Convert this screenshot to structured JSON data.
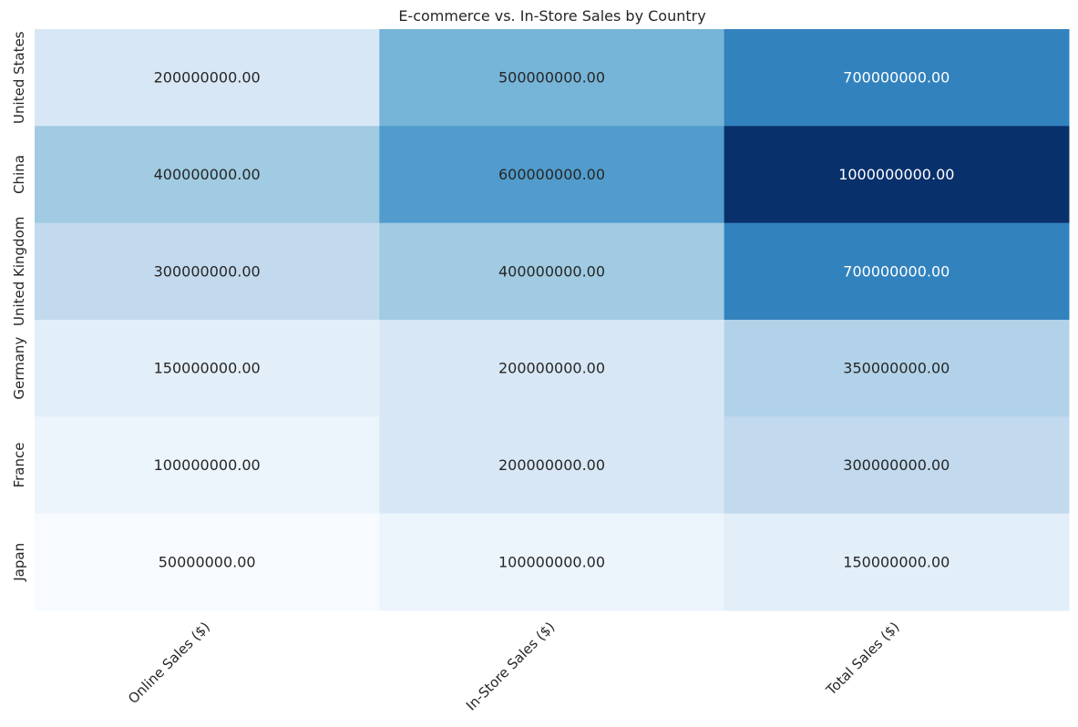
{
  "chart_data": {
    "type": "heatmap",
    "title": "E-commerce vs. In-Store Sales by Country",
    "xlabel": "",
    "ylabel": "",
    "columns": [
      "Online Sales ($)",
      "In-Store Sales ($)",
      "Total Sales ($)"
    ],
    "rows": [
      "United States",
      "China",
      "United Kingdom",
      "Germany",
      "France",
      "Japan"
    ],
    "values": [
      [
        200000000,
        500000000,
        700000000
      ],
      [
        400000000,
        600000000,
        1000000000
      ],
      [
        300000000,
        400000000,
        700000000
      ],
      [
        150000000,
        200000000,
        350000000
      ],
      [
        100000000,
        200000000,
        300000000
      ],
      [
        50000000,
        100000000,
        150000000
      ]
    ],
    "cell_labels": [
      [
        "200000000.00",
        "500000000.00",
        "700000000.00"
      ],
      [
        "400000000.00",
        "600000000.00",
        "1000000000.00"
      ],
      [
        "300000000.00",
        "400000000.00",
        "700000000.00"
      ],
      [
        "150000000.00",
        "200000000.00",
        "350000000.00"
      ],
      [
        "100000000.00",
        "200000000.00",
        "300000000.00"
      ],
      [
        "50000000.00",
        "100000000.00",
        "150000000.00"
      ]
    ],
    "colormap": "Blues",
    "colorbar": false,
    "value_range": [
      50000000,
      1000000000
    ],
    "colors": {
      "low": "#f7fbff",
      "high": "#08306b",
      "text_dark": "#262626",
      "text_light": "#ffffff"
    }
  }
}
